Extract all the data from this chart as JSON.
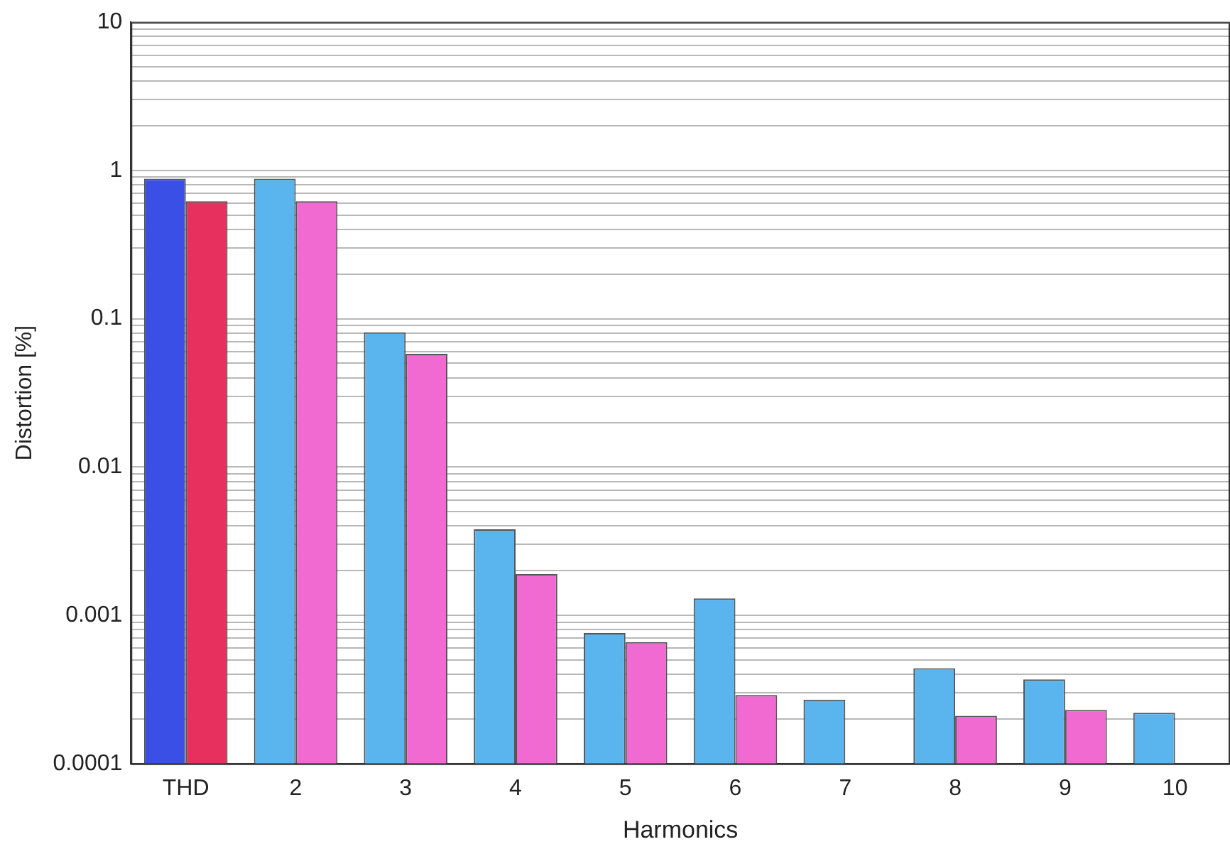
{
  "chart_data": {
    "type": "bar",
    "xlabel": "Harmonics",
    "ylabel": "Distortion [%]",
    "categories": [
      "THD",
      "2",
      "3",
      "4",
      "5",
      "6",
      "7",
      "8",
      "9",
      "10"
    ],
    "series": [
      {
        "colors": [
          "#3a4fe6",
          "#5ab4ee",
          "#5ab4ee",
          "#5ab4ee",
          "#5ab4ee",
          "#5ab4ee",
          "#5ab4ee",
          "#5ab4ee",
          "#5ab4ee",
          "#5ab4ee"
        ],
        "values": [
          0.88,
          0.88,
          0.081,
          0.0038,
          0.00076,
          0.0013,
          0.00027,
          0.00044,
          0.00037,
          0.00022
        ]
      },
      {
        "colors": [
          "#e8305e",
          "#f06ad2",
          "#f06ad2",
          "#f06ad2",
          "#f06ad2",
          "#f06ad2",
          "#f06ad2",
          "#f06ad2",
          "#f06ad2",
          "#f06ad2"
        ],
        "values": [
          0.62,
          0.62,
          0.058,
          0.0019,
          0.00066,
          0.00029,
          null,
          0.00021,
          0.00023,
          null
        ]
      }
    ],
    "log": "y",
    "ylim": [
      0.0001,
      10
    ],
    "yticks": [
      {
        "value": 0.0001,
        "label": "0.0001"
      },
      {
        "value": 0.0002,
        "label": null
      },
      {
        "value": 0.0003,
        "label": null
      },
      {
        "value": 0.0004,
        "label": null
      },
      {
        "value": 0.0005,
        "label": null
      },
      {
        "value": 0.0006,
        "label": null
      },
      {
        "value": 0.0007,
        "label": null
      },
      {
        "value": 0.0008,
        "label": null
      },
      {
        "value": 0.0009,
        "label": null
      },
      {
        "value": 0.001,
        "label": "0.001"
      },
      {
        "value": 0.002,
        "label": null
      },
      {
        "value": 0.003,
        "label": null
      },
      {
        "value": 0.004,
        "label": null
      },
      {
        "value": 0.005,
        "label": null
      },
      {
        "value": 0.006,
        "label": null
      },
      {
        "value": 0.007,
        "label": null
      },
      {
        "value": 0.008,
        "label": null
      },
      {
        "value": 0.009,
        "label": null
      },
      {
        "value": 0.01,
        "label": "0.01"
      },
      {
        "value": 0.02,
        "label": null
      },
      {
        "value": 0.03,
        "label": null
      },
      {
        "value": 0.04,
        "label": null
      },
      {
        "value": 0.05,
        "label": null
      },
      {
        "value": 0.06,
        "label": null
      },
      {
        "value": 0.07,
        "label": null
      },
      {
        "value": 0.08,
        "label": null
      },
      {
        "value": 0.09,
        "label": null
      },
      {
        "value": 0.1,
        "label": "0.1"
      },
      {
        "value": 0.2,
        "label": null
      },
      {
        "value": 0.3,
        "label": null
      },
      {
        "value": 0.4,
        "label": null
      },
      {
        "value": 0.5,
        "label": null
      },
      {
        "value": 0.6,
        "label": null
      },
      {
        "value": 0.7,
        "label": null
      },
      {
        "value": 0.8,
        "label": null
      },
      {
        "value": 0.9,
        "label": null
      },
      {
        "value": 1,
        "label": "1"
      },
      {
        "value": 2,
        "label": null
      },
      {
        "value": 3,
        "label": null
      },
      {
        "value": 4,
        "label": null
      },
      {
        "value": 5,
        "label": null
      },
      {
        "value": 6,
        "label": null
      },
      {
        "value": 7,
        "label": null
      },
      {
        "value": 8,
        "label": null
      },
      {
        "value": 9,
        "label": null
      },
      {
        "value": 10,
        "label": "10"
      }
    ],
    "grid": "y",
    "legend": false
  }
}
